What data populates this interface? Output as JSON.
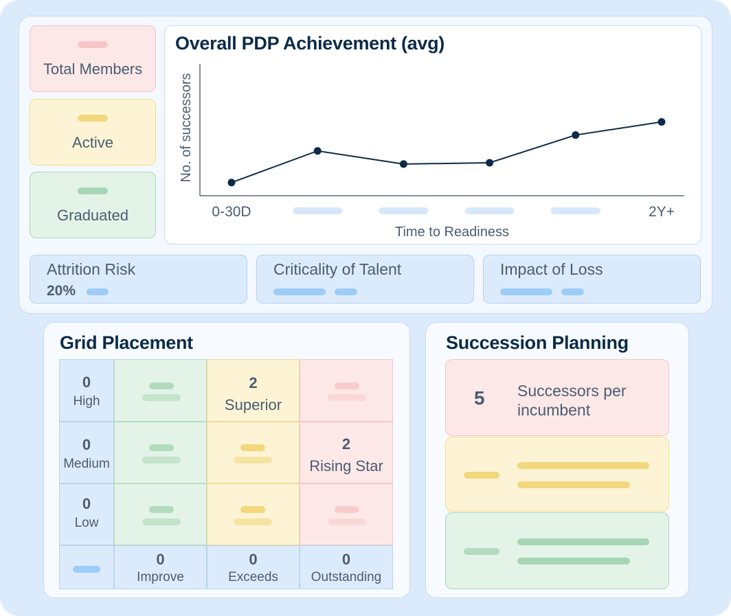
{
  "stats": [
    {
      "label": "Total Members",
      "color": "#fde8e8"
    },
    {
      "label": "Active",
      "color": "#fdf4d6"
    },
    {
      "label": "Graduated",
      "color": "#e4f3e8"
    }
  ],
  "chart": {
    "title": "Overall PDP Achievement (avg)"
  },
  "chart_data": {
    "type": "line",
    "title": "Overall PDP Achievement (avg)",
    "xlabel": "Time to Readiness",
    "ylabel": "No. of successors",
    "categories": [
      "0-30D",
      "",
      "",
      "",
      "",
      "2Y+"
    ],
    "series": [
      {
        "values": [
          1.0,
          3.4,
          2.4,
          2.5,
          4.6,
          5.6
        ]
      }
    ],
    "ylim": [
      0,
      10
    ],
    "grid": false
  },
  "metrics": [
    {
      "label": "Attrition Risk",
      "value": "20%"
    },
    {
      "label": "Criticality of Talent",
      "value": ""
    },
    {
      "label": "Impact of Loss",
      "value": ""
    }
  ],
  "grid_placement": {
    "title": "Grid Placement",
    "rows": [
      {
        "count": "0",
        "label": "High"
      },
      {
        "count": "0",
        "label": "Medium"
      },
      {
        "count": "0",
        "label": "Low"
      }
    ],
    "cols": [
      {
        "count": "0",
        "label": "Improve"
      },
      {
        "count": "0",
        "label": "Exceeds"
      },
      {
        "count": "0",
        "label": "Outstanding"
      }
    ],
    "superior": {
      "count": "2",
      "label": "Superior"
    },
    "rising_star": {
      "count": "2",
      "label": "Rising Star"
    }
  },
  "succession": {
    "title": "Succession Planning",
    "count": "5",
    "label": "Successors per incumbent"
  }
}
